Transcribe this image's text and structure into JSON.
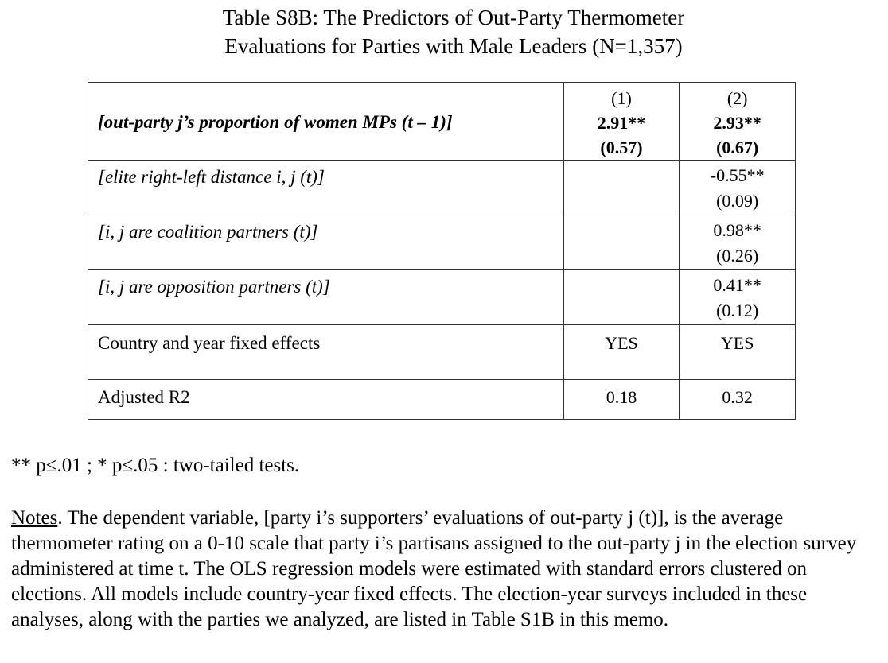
{
  "title": {
    "line1": "Table S8B: The Predictors of Out-Party Thermometer",
    "line2": "Evaluations for Parties with Male Leaders (N=1,357)"
  },
  "table": {
    "col_headers": [
      "(1)",
      "(2)"
    ],
    "rows": [
      {
        "label": "[out-party j’s proportion of women MPs (t – 1)]",
        "c1_coef": "2.91**",
        "c1_se": "(0.57)",
        "c2_coef": "2.93**",
        "c2_se": "(0.67)"
      },
      {
        "label": "[elite right-left distance i, j (t)]",
        "c1_coef": "",
        "c1_se": "",
        "c2_coef": "-0.55**",
        "c2_se": "(0.09)"
      },
      {
        "label": "[i, j are coalition partners (t)]",
        "c1_coef": "",
        "c1_se": "",
        "c2_coef": "0.98**",
        "c2_se": "(0.26)"
      },
      {
        "label": "[i, j are opposition partners (t)]",
        "c1_coef": "",
        "c1_se": "",
        "c2_coef": "0.41**",
        "c2_se": "(0.12)"
      },
      {
        "label": "Country and year fixed effects",
        "c1": "YES",
        "c2": "YES"
      },
      {
        "label": "Adjusted R2",
        "c1": "0.18",
        "c2": "0.32"
      }
    ]
  },
  "footnote": "** p≤.01 ; * p≤.05 : two-tailed tests.",
  "notes": {
    "heading": "Notes",
    "text": ". The dependent variable, [party i’s supporters’ evaluations of out-party j (t)], is the average thermometer rating on a 0-10 scale that party i’s partisans assigned to the out-party j in the election survey administered at time t.  The OLS regression models were estimated with standard errors clustered on elections. All models include country-year fixed effects.  The election-year surveys included in these analyses, along with the parties we analyzed, are listed in Table S1B in this memo."
  }
}
